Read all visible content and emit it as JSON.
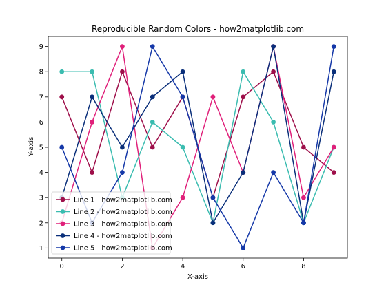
{
  "chart_data": {
    "type": "line",
    "title": "Reproducible Random Colors - how2matplotlib.com",
    "xlabel": "X-axis",
    "ylabel": "Y-axis",
    "x": [
      0,
      1,
      2,
      3,
      4,
      5,
      6,
      7,
      8,
      9
    ],
    "xlim": [
      -0.45,
      9.45
    ],
    "ylim": [
      0.6,
      9.4
    ],
    "xticks": [
      0,
      2,
      4,
      6,
      8
    ],
    "yticks": [
      1,
      2,
      3,
      4,
      5,
      6,
      7,
      8,
      9
    ],
    "grid": false,
    "legend_position": "lower-left",
    "series": [
      {
        "name": "Line 1 - how2matplotlib.com",
        "color": "#9e0f4a",
        "values": [
          7,
          4,
          8,
          5,
          7,
          3,
          7,
          8,
          5,
          4
        ]
      },
      {
        "name": "Line 2 - how2matplotlib.com",
        "color": "#3bbcb0",
        "values": [
          8,
          8,
          3,
          6,
          5,
          2,
          8,
          6,
          2,
          5
        ]
      },
      {
        "name": "Line 3 - how2matplotlib.com",
        "color": "#e0207a",
        "values": [
          2,
          6,
          9,
          1,
          3,
          7,
          4,
          9,
          3,
          5
        ]
      },
      {
        "name": "Line 4 - how2matplotlib.com",
        "color": "#0a2f7a",
        "values": [
          3,
          7,
          5,
          7,
          8,
          2,
          4,
          9,
          2,
          8
        ]
      },
      {
        "name": "Line 5 - how2matplotlib.com",
        "color": "#1538a8",
        "values": [
          5,
          2,
          4,
          9,
          7,
          3,
          1,
          4,
          2,
          9
        ]
      }
    ]
  }
}
